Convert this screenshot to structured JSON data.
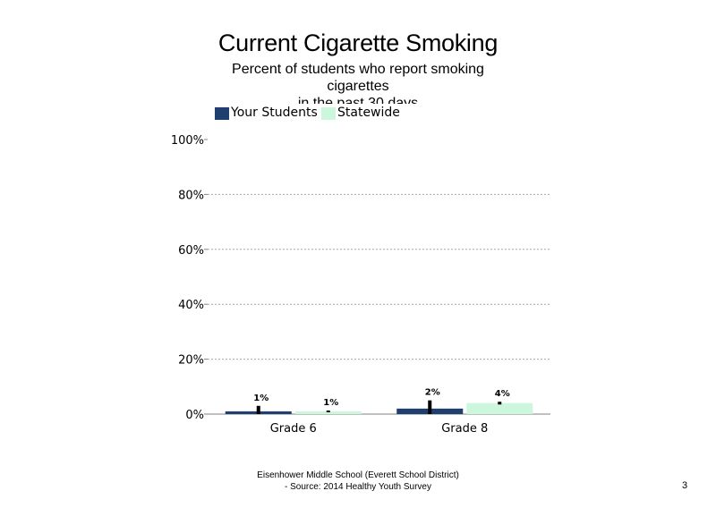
{
  "slide": {
    "title": "Current Cigarette Smoking",
    "subtitle_line1": "Percent of students who report smoking",
    "subtitle_line2": "cigarettes",
    "subtitle_line3": "in the past 30 days",
    "footer_line1": "Eisenhower Middle School (Everett School District)",
    "footer_line2": "- Source: 2014 Healthy  Youth Survey",
    "page_number": "3"
  },
  "colors": {
    "your_students": "#1f3f6e",
    "statewide": "#cdf7dc",
    "error_bar": "#000000",
    "gridline": "#a6a6a6",
    "axis": "#808080"
  },
  "chart_data": {
    "type": "bar",
    "categories": [
      "Grade 6",
      "Grade 8"
    ],
    "series": [
      {
        "name": "Your Students",
        "values": [
          1,
          2
        ],
        "labels": [
          "1%",
          "2%"
        ],
        "error_low": [
          0,
          0
        ],
        "error_high": [
          3,
          5
        ]
      },
      {
        "name": "Statewide",
        "values": [
          1,
          4
        ],
        "labels": [
          "1%",
          "4%"
        ],
        "error_low": [
          1,
          3.5
        ],
        "error_high": [
          1.3,
          4.5
        ]
      }
    ],
    "ylim": [
      0,
      100
    ],
    "yticks": [
      0,
      20,
      40,
      60,
      80,
      100
    ],
    "ytick_labels": [
      "0%",
      "20%",
      "40%",
      "60%",
      "80%",
      "100%"
    ],
    "grid": true,
    "legend_position": "top-left",
    "xlabel": "",
    "ylabel": ""
  }
}
